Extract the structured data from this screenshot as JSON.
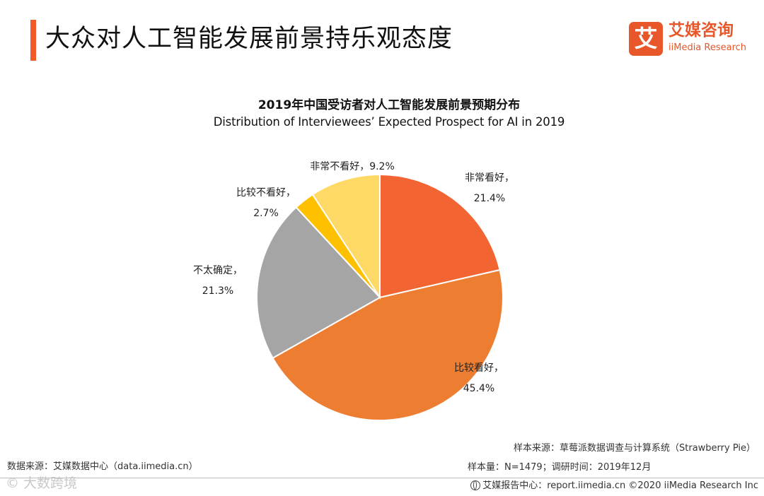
{
  "header": {
    "title": "大众对人工智能发展前景持乐观态度",
    "accent_color": "#F25A2A"
  },
  "logo": {
    "mark": "艾",
    "cn": "艾媒咨询",
    "en": "iiMedia Research",
    "color": "#E8572A"
  },
  "chart_data": {
    "type": "pie",
    "title": "2019年中国受访者对人工智能发展前景预期分布",
    "subtitle": "Distribution of Interviewees’ Expected Prospect for AI in 2019",
    "unit": "%",
    "slices": [
      {
        "name": "非常看好",
        "value": 21.4,
        "color": "#F26532",
        "label_line1": "非常看好，",
        "label_line2": "21.4%"
      },
      {
        "name": "比较看好",
        "value": 45.4,
        "color": "#ED7D31",
        "label_line1": "比较看好，",
        "label_line2": "45.4%"
      },
      {
        "name": "不太确定",
        "value": 21.3,
        "color": "#A5A5A5",
        "label_line1": "不太确定，",
        "label_line2": "21.3%"
      },
      {
        "name": "比较不看好",
        "value": 2.7,
        "color": "#FFC000",
        "label_line1": "比较不看好，",
        "label_line2": "2.7%"
      },
      {
        "name": "非常不看好",
        "value": 9.2,
        "color": "#FFD966",
        "label_line1": "非常不看好，9.2%",
        "label_line2": ""
      }
    ]
  },
  "footer": {
    "source": "数据来源：艾媒数据中心（data.iimedia.cn）",
    "sample_source": "样本来源：草莓派数据调查与计算系统（Strawberry  Pie）",
    "sample_size": "样本量：N=1479；调研时间：2019年12月",
    "copyright": "艾媒报告中心：report.iimedia.cn  ©2020  iiMedia Research  Inc",
    "watermark": "©  大数跨境"
  }
}
